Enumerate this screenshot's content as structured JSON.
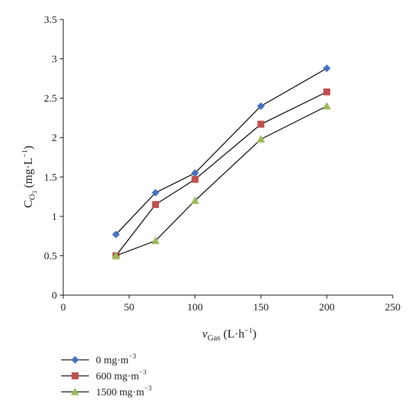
{
  "chart_data": {
    "type": "line",
    "title": "",
    "xlabel": {
      "symbol": "v",
      "subscript": "Gas",
      "unit_prefix": " (L·h",
      "unit_exp": "−1",
      "unit_suffix": ")"
    },
    "ylabel": {
      "symbol": "C",
      "subscript": "O",
      "sub_subscript": "3",
      "unit_prefix": "  (mg·L",
      "unit_exp": "−1",
      "unit_suffix": ")"
    },
    "xlim": [
      0,
      250
    ],
    "ylim": [
      0,
      3.5
    ],
    "x_ticks": [
      0,
      50,
      100,
      150,
      200,
      250
    ],
    "x_tick_labels": [
      "0",
      "50",
      "100",
      "150",
      "200",
      "250"
    ],
    "y_ticks": [
      0,
      0.5,
      1,
      1.5,
      2,
      2.5,
      3,
      3.5
    ],
    "y_tick_labels": [
      "0",
      "0.5",
      "1",
      "1.5",
      "2",
      "2.5",
      "3",
      "3.5"
    ],
    "grid": false,
    "legend_position": "bottom-left",
    "line_color": "#000000",
    "series": [
      {
        "name": "0 mg·m",
        "name_exp": "−3",
        "marker": "diamond",
        "color": "#4472c4",
        "x": [
          40,
          70,
          100,
          150,
          200
        ],
        "y": [
          0.77,
          1.3,
          1.55,
          2.4,
          2.88
        ]
      },
      {
        "name": "600 mg·m",
        "name_exp": "−3",
        "marker": "square",
        "color": "#c0504d",
        "x": [
          40,
          70,
          100,
          150,
          200
        ],
        "y": [
          0.5,
          1.15,
          1.47,
          2.17,
          2.58
        ]
      },
      {
        "name": "1500 mg·m",
        "name_exp": "−3",
        "marker": "triangle",
        "color": "#9bbb59",
        "x": [
          40,
          70,
          100,
          150,
          200
        ],
        "y": [
          0.5,
          0.69,
          1.2,
          1.98,
          2.4
        ]
      }
    ]
  }
}
